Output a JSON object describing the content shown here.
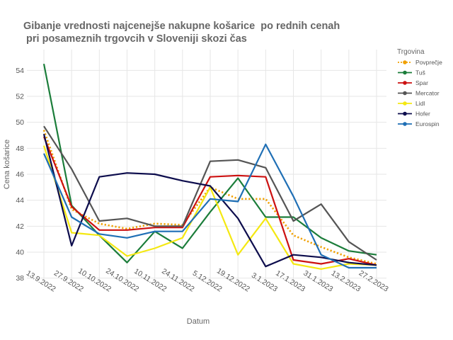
{
  "chart_data": {
    "type": "line",
    "title_lines": [
      "Gibanje vrednosti najcenejše nakupne košarice  po rednih cenah",
      " pri posameznih trgovcih v Sloveniji skozi čas"
    ],
    "xlabel": "Datum",
    "ylabel": "Cena košarice",
    "categories": [
      "13.9.2022",
      "27.9.2022",
      "10.10.2022",
      "24.10.2022",
      "10.11.2022",
      "24.11.2022",
      "5.12.2022",
      "19.12.2022",
      "3.1.2023",
      "17.1.2023",
      "31.1.2023",
      "13.2.2023",
      "27.2.2023"
    ],
    "ylim": [
      37.6,
      55.6
    ],
    "yticks": [
      38,
      40,
      42,
      44,
      46,
      48,
      50,
      52,
      54
    ],
    "grid": true,
    "legend_title": "Trgovina",
    "legend_position": "right",
    "series": [
      {
        "name": "Povprečje",
        "color": "#f0a000",
        "dash": "dotted",
        "values": [
          49.4,
          43.3,
          42.2,
          41.8,
          42.2,
          42.1,
          45.0,
          44.1,
          44.1,
          41.3,
          40.4,
          39.6,
          39.1
        ]
      },
      {
        "name": "Tuš",
        "color": "#1b7d3a",
        "dash": "solid",
        "values": [
          54.5,
          43.6,
          41.3,
          39.2,
          41.6,
          40.3,
          43.1,
          45.7,
          42.7,
          42.7,
          41.1,
          40.1,
          39.8
        ]
      },
      {
        "name": "Spar",
        "color": "#cc1111",
        "dash": "solid",
        "values": [
          48.9,
          43.5,
          41.7,
          41.7,
          41.9,
          41.9,
          45.8,
          45.9,
          45.8,
          39.4,
          39.1,
          39.5,
          39.0
        ]
      },
      {
        "name": "Mercator",
        "color": "#555555",
        "dash": "solid",
        "values": [
          49.7,
          46.4,
          42.4,
          42.6,
          42.0,
          42.0,
          47.0,
          47.1,
          46.5,
          42.4,
          43.7,
          40.8,
          39.4
        ]
      },
      {
        "name": "Lidl",
        "color": "#f4e812",
        "dash": "solid",
        "values": [
          48.2,
          41.5,
          41.3,
          39.7,
          40.3,
          41.1,
          45.0,
          39.8,
          42.6,
          39.1,
          38.7,
          39.1,
          39.0
        ]
      },
      {
        "name": "Hofer",
        "color": "#0d0d4d",
        "dash": "solid",
        "values": [
          49.1,
          40.5,
          45.8,
          46.1,
          46.0,
          45.5,
          45.1,
          42.6,
          38.9,
          39.8,
          39.6,
          39.2,
          39.0
        ]
      },
      {
        "name": "Eurospin",
        "color": "#1f6fb5",
        "dash": "solid",
        "values": [
          47.6,
          42.7,
          41.4,
          41.1,
          41.6,
          41.6,
          44.1,
          43.9,
          48.3,
          44.3,
          39.8,
          38.8,
          38.8
        ]
      }
    ]
  }
}
